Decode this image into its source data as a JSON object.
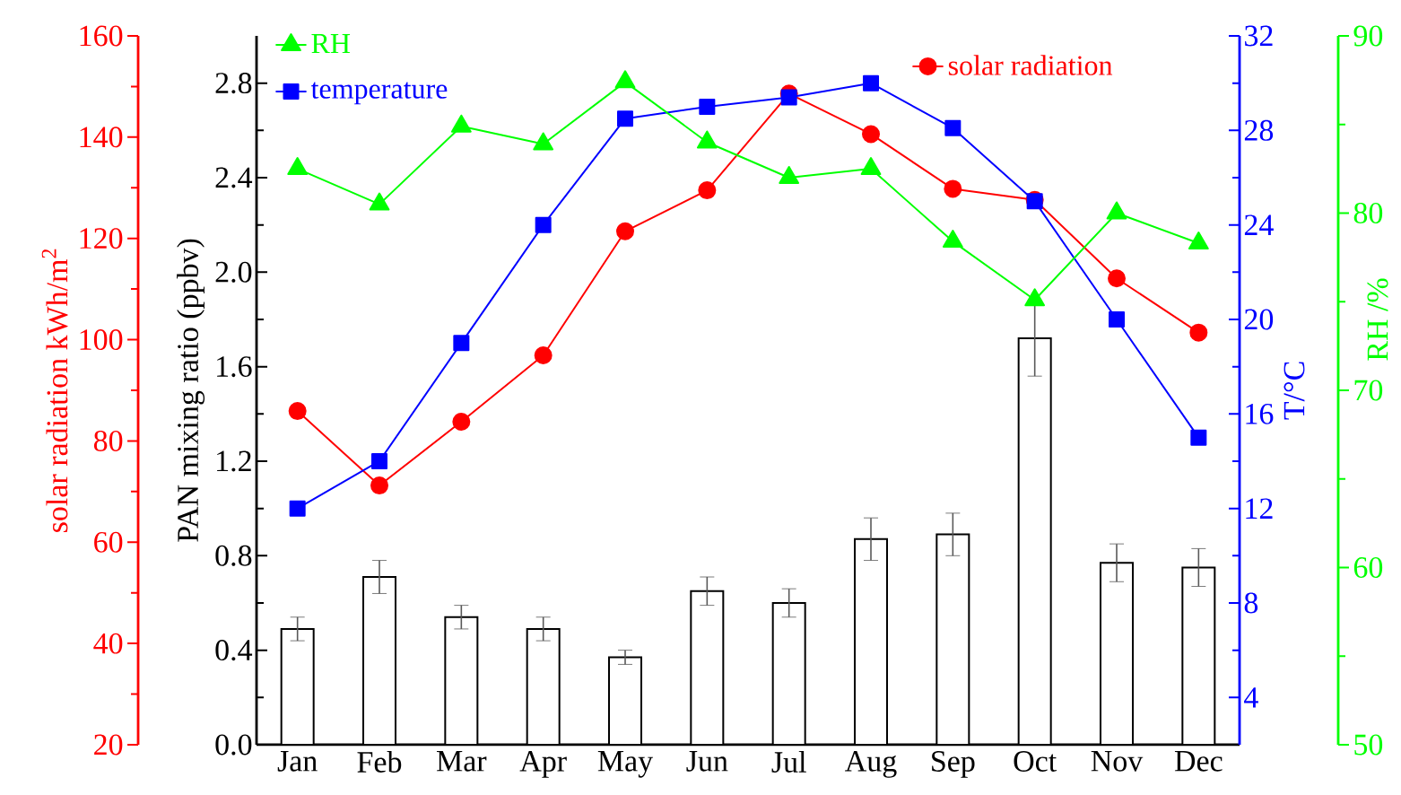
{
  "chart_data": [
    {
      "type": "bar",
      "categories": [
        "Jan",
        "Feb",
        "Mar",
        "Apr",
        "May",
        "Jun",
        "Jul",
        "Aug",
        "Sep",
        "Oct",
        "Nov",
        "Dec"
      ],
      "ylabel": "PAN mixing ratio (ppbv)",
      "ylim": [
        0,
        3.0
      ],
      "yticks": [
        {
          "value": 0,
          "label": "0.0"
        },
        0.4,
        0.8,
        1.2,
        1.6,
        {
          "value": 2.0,
          "label": "2.0"
        },
        2.4,
        2.8
      ],
      "y2label": "T/°C",
      "y2lim": [
        2,
        32
      ],
      "y2ticks": [
        4,
        8,
        12,
        16,
        20,
        24,
        28,
        32
      ],
      "y3label": "solar radiation kWh/m$^{2}$",
      "y3lim": [
        20,
        160
      ],
      "y3ticks": [
        20,
        40,
        60,
        80,
        100,
        120,
        140,
        160
      ],
      "legend": "top",
      "series": [
        {
          "color": "#000000",
          "values": [
            0.49,
            0.71,
            0.54,
            0.49,
            0.37,
            0.65,
            0.6,
            0.87,
            0.89,
            1.72,
            0.77,
            0.75
          ],
          "errors": [
            0.05,
            0.07,
            0.05,
            0.05,
            0.03,
            0.06,
            0.06,
            0.09,
            0.09,
            0.16,
            0.08,
            0.08
          ]
        },
        {
          "type": "line",
          "name": "temperature",
          "axis": "y2",
          "color": "#0000ff",
          "marker": "square",
          "values": [
            12.0,
            14.0,
            19.0,
            24.0,
            28.5,
            29.0,
            29.4,
            30.0,
            28.1,
            25.0,
            20.0,
            15.0
          ]
        },
        {
          "type": "line",
          "name": "solar radiation",
          "axis": "y3",
          "color": "#ff0000",
          "marker": "circle",
          "values": [
            85.9,
            71.2,
            83.8,
            96.9,
            121.4,
            129.5,
            148.6,
            140.6,
            129.8,
            127.6,
            112.1,
            101.4
          ]
        }
      ]
    },
    {
      "type": "line",
      "categories": [
        null,
        null,
        null,
        null,
        null,
        null,
        null,
        null,
        null,
        null,
        null,
        null
      ],
      "tick_labels": "y",
      "ylabel": "RH /%",
      "ylim": [
        50,
        90
      ],
      "yticks": [
        50,
        60,
        70,
        80,
        90
      ],
      "legend": "top left",
      "series": [
        {
          "name": "RH",
          "color": "#00ff00",
          "marker": "triangle",
          "values": [
            82.5,
            80.5,
            84.9,
            83.9,
            87.4,
            84.0,
            82.0,
            82.5,
            78.4,
            75.1,
            80.0,
            78.3
          ]
        }
      ]
    }
  ]
}
